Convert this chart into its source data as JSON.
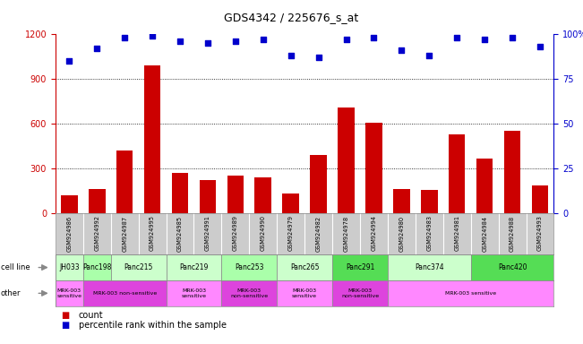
{
  "title": "GDS4342 / 225676_s_at",
  "gsm_labels": [
    "GSM924986",
    "GSM924992",
    "GSM924987",
    "GSM924995",
    "GSM924985",
    "GSM924991",
    "GSM924989",
    "GSM924990",
    "GSM924979",
    "GSM924982",
    "GSM924978",
    "GSM924994",
    "GSM924980",
    "GSM924983",
    "GSM924981",
    "GSM924984",
    "GSM924988",
    "GSM924993"
  ],
  "bar_values": [
    120,
    160,
    420,
    990,
    270,
    220,
    250,
    240,
    130,
    390,
    710,
    610,
    160,
    155,
    530,
    370,
    555,
    185
  ],
  "percentile_values": [
    85,
    92,
    98,
    99,
    96,
    95,
    96,
    97,
    88,
    87,
    97,
    98,
    91,
    88,
    98,
    97,
    98,
    93
  ],
  "bar_color": "#cc0000",
  "dot_color": "#0000cc",
  "ylim_left": [
    0,
    1200
  ],
  "ylim_right": [
    0,
    100
  ],
  "yticks_left": [
    0,
    300,
    600,
    900,
    1200
  ],
  "yticks_right": [
    0,
    25,
    50,
    75,
    100
  ],
  "cell_line_groups": [
    {
      "name": "JH033",
      "start": 0,
      "end": 1,
      "color": "#ccffcc"
    },
    {
      "name": "Panc198",
      "start": 1,
      "end": 2,
      "color": "#aaffaa"
    },
    {
      "name": "Panc215",
      "start": 2,
      "end": 4,
      "color": "#ccffcc"
    },
    {
      "name": "Panc219",
      "start": 4,
      "end": 6,
      "color": "#ccffcc"
    },
    {
      "name": "Panc253",
      "start": 6,
      "end": 8,
      "color": "#aaffaa"
    },
    {
      "name": "Panc265",
      "start": 8,
      "end": 10,
      "color": "#ccffcc"
    },
    {
      "name": "Panc291",
      "start": 10,
      "end": 12,
      "color": "#55dd55"
    },
    {
      "name": "Panc374",
      "start": 12,
      "end": 15,
      "color": "#ccffcc"
    },
    {
      "name": "Panc420",
      "start": 15,
      "end": 18,
      "color": "#55dd55"
    }
  ],
  "other_groups": [
    {
      "name": "MRK-003\nsensitive",
      "start": 0,
      "end": 1,
      "color": "#ff88ff"
    },
    {
      "name": "MRK-003 non-sensitive",
      "start": 1,
      "end": 4,
      "color": "#dd44dd"
    },
    {
      "name": "MRK-003\nsensitive",
      "start": 4,
      "end": 6,
      "color": "#ff88ff"
    },
    {
      "name": "MRK-003\nnon-sensitive",
      "start": 6,
      "end": 8,
      "color": "#dd44dd"
    },
    {
      "name": "MRK-003\nsensitive",
      "start": 8,
      "end": 10,
      "color": "#ff88ff"
    },
    {
      "name": "MRK-003\nnon-sensitive",
      "start": 10,
      "end": 12,
      "color": "#dd44dd"
    },
    {
      "name": "MRK-003 sensitive",
      "start": 12,
      "end": 18,
      "color": "#ff88ff"
    }
  ],
  "bg_color": "#ffffff",
  "xtick_bg_color": "#cccccc",
  "grid_color": "#000000",
  "tick_color_left": "#cc0000",
  "tick_color_right": "#0000cc",
  "legend_count_color": "#cc0000",
  "legend_dot_color": "#0000cc"
}
